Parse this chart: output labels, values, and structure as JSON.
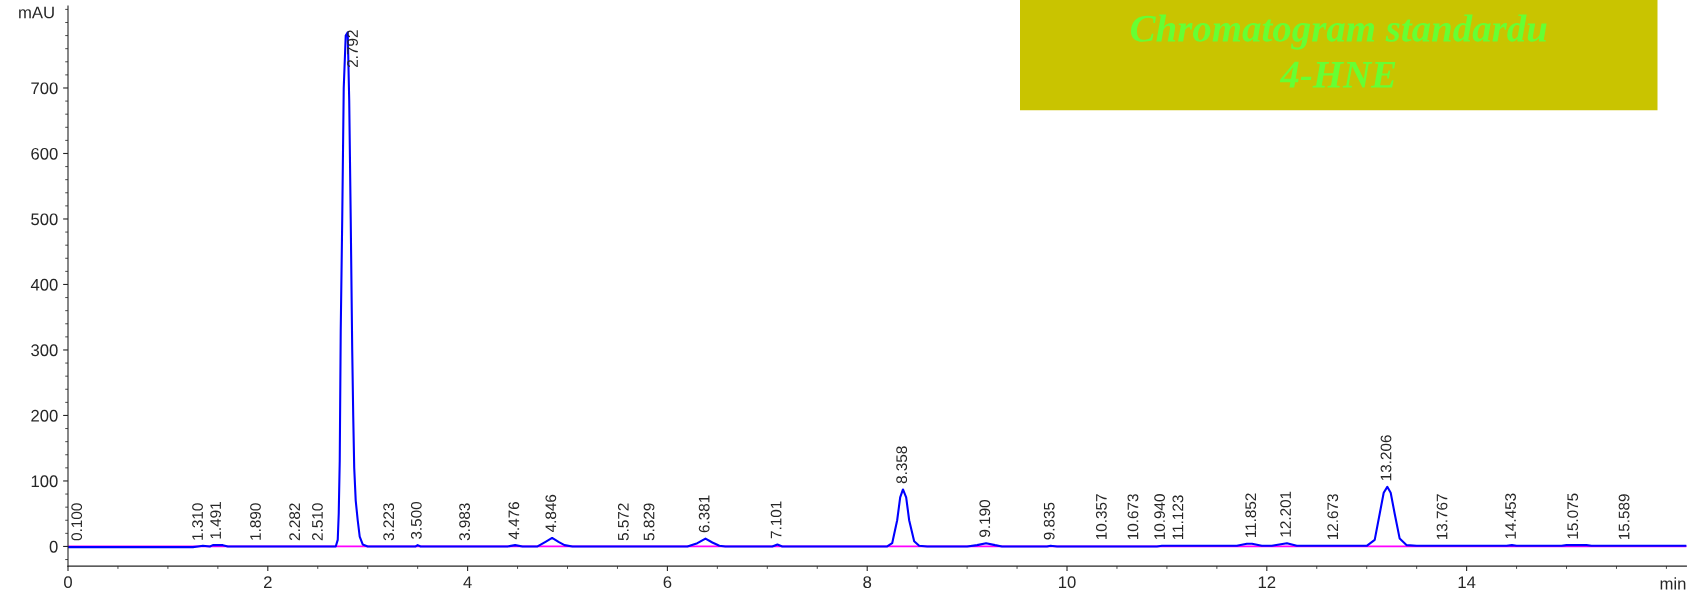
{
  "chart_data": {
    "type": "line",
    "title": "Chromatogram standardu",
    "subtitle": "4-HNE",
    "xlabel": "min",
    "ylabel": "mAU",
    "x": [
      0,
      1.25,
      1.3,
      1.35,
      1.42,
      1.45,
      1.55,
      1.6,
      2.68,
      2.7,
      2.71,
      2.72,
      2.73,
      2.745,
      2.76,
      2.78,
      2.8,
      2.815,
      2.83,
      2.845,
      2.855,
      2.865,
      2.88,
      2.9,
      2.92,
      2.95,
      3.0,
      3.48,
      3.5,
      3.53,
      4.4,
      4.476,
      4.55,
      4.7,
      4.78,
      4.846,
      4.91,
      4.97,
      5.05,
      6.2,
      6.3,
      6.381,
      6.45,
      6.52,
      6.58,
      7.05,
      7.101,
      7.15,
      8.2,
      8.25,
      8.3,
      8.33,
      8.358,
      8.39,
      8.42,
      8.47,
      8.52,
      8.6,
      9.0,
      9.1,
      9.19,
      9.28,
      9.35,
      9.8,
      9.835,
      9.9,
      10.9,
      10.95,
      11.7,
      11.8,
      11.852,
      11.95,
      12.05,
      12.201,
      12.3,
      13.0,
      13.08,
      13.13,
      13.17,
      13.206,
      13.24,
      13.28,
      13.33,
      13.4,
      13.5,
      14.4,
      14.453,
      14.5,
      14.95,
      15.0,
      15.2,
      15.25,
      16.2
    ],
    "series": [
      {
        "color": "#0000ff",
        "values": [
          -1,
          -1,
          0,
          1,
          0,
          2,
          2,
          0,
          0,
          10,
          50,
          130,
          330,
          500,
          700,
          780,
          785,
          680,
          500,
          300,
          200,
          120,
          70,
          40,
          15,
          3,
          0,
          0,
          2,
          0,
          0,
          2,
          0,
          0,
          7,
          13,
          7,
          2,
          0,
          0,
          5,
          12,
          6,
          1,
          0,
          0,
          3,
          0,
          0,
          5,
          40,
          75,
          87,
          75,
          40,
          8,
          1,
          0,
          0,
          2,
          5,
          2,
          0,
          0,
          1,
          0,
          0,
          1,
          1,
          4,
          4,
          1,
          1,
          5,
          1,
          1,
          10,
          50,
          82,
          91,
          82,
          50,
          12,
          2,
          1,
          1,
          2,
          1,
          1,
          2,
          2,
          1,
          1
        ]
      }
    ],
    "xlim": [
      0,
      16.2
    ],
    "ylim": [
      -30,
      825
    ],
    "xticks": [
      0,
      2,
      4,
      6,
      8,
      10,
      12,
      14
    ],
    "yticks": [
      0,
      100,
      200,
      300,
      400,
      500,
      600,
      700
    ],
    "ref_lines": [
      {
        "axis": "y",
        "value": 0,
        "color": "#ff00ff"
      }
    ],
    "grid": false,
    "marker": "none",
    "line_style": "solid",
    "annotations": [
      {
        "text": "0.100",
        "x": 0.1,
        "y": 0
      },
      {
        "text": "1.310",
        "x": 1.31,
        "y": 0
      },
      {
        "text": "1.491",
        "x": 1.491,
        "y": 2
      },
      {
        "text": "1.890",
        "x": 1.89,
        "y": 0
      },
      {
        "text": "2.282",
        "x": 2.282,
        "y": 0
      },
      {
        "text": "2.510",
        "x": 2.51,
        "y": 0
      },
      {
        "text": "2.792",
        "x": 2.792,
        "y": 785
      },
      {
        "text": "3.223",
        "x": 3.223,
        "y": 0
      },
      {
        "text": "3.500",
        "x": 3.5,
        "y": 2
      },
      {
        "text": "3.983",
        "x": 3.983,
        "y": 0
      },
      {
        "text": "4.476",
        "x": 4.476,
        "y": 2
      },
      {
        "text": "4.846",
        "x": 4.846,
        "y": 13
      },
      {
        "text": "5.572",
        "x": 5.572,
        "y": 0
      },
      {
        "text": "5.829",
        "x": 5.829,
        "y": 0
      },
      {
        "text": "6.381",
        "x": 6.381,
        "y": 12
      },
      {
        "text": "7.101",
        "x": 7.101,
        "y": 3
      },
      {
        "text": "8.358",
        "x": 8.358,
        "y": 87
      },
      {
        "text": "9.190",
        "x": 9.19,
        "y": 5
      },
      {
        "text": "9.835",
        "x": 9.835,
        "y": 1
      },
      {
        "text": "10.357",
        "x": 10.357,
        "y": 1
      },
      {
        "text": "10.673",
        "x": 10.673,
        "y": 1
      },
      {
        "text": "10.940",
        "x": 10.94,
        "y": 1
      },
      {
        "text": "11.123",
        "x": 11.123,
        "y": 1
      },
      {
        "text": "11.852",
        "x": 11.852,
        "y": 4
      },
      {
        "text": "12.201",
        "x": 12.201,
        "y": 5
      },
      {
        "text": "12.673",
        "x": 12.673,
        "y": 1
      },
      {
        "text": "13.206",
        "x": 13.206,
        "y": 91
      },
      {
        "text": "13.767",
        "x": 13.767,
        "y": 1
      },
      {
        "text": "14.453",
        "x": 14.453,
        "y": 2
      },
      {
        "text": "15.075",
        "x": 15.075,
        "y": 2
      },
      {
        "text": "15.589",
        "x": 15.589,
        "y": 1
      }
    ]
  }
}
